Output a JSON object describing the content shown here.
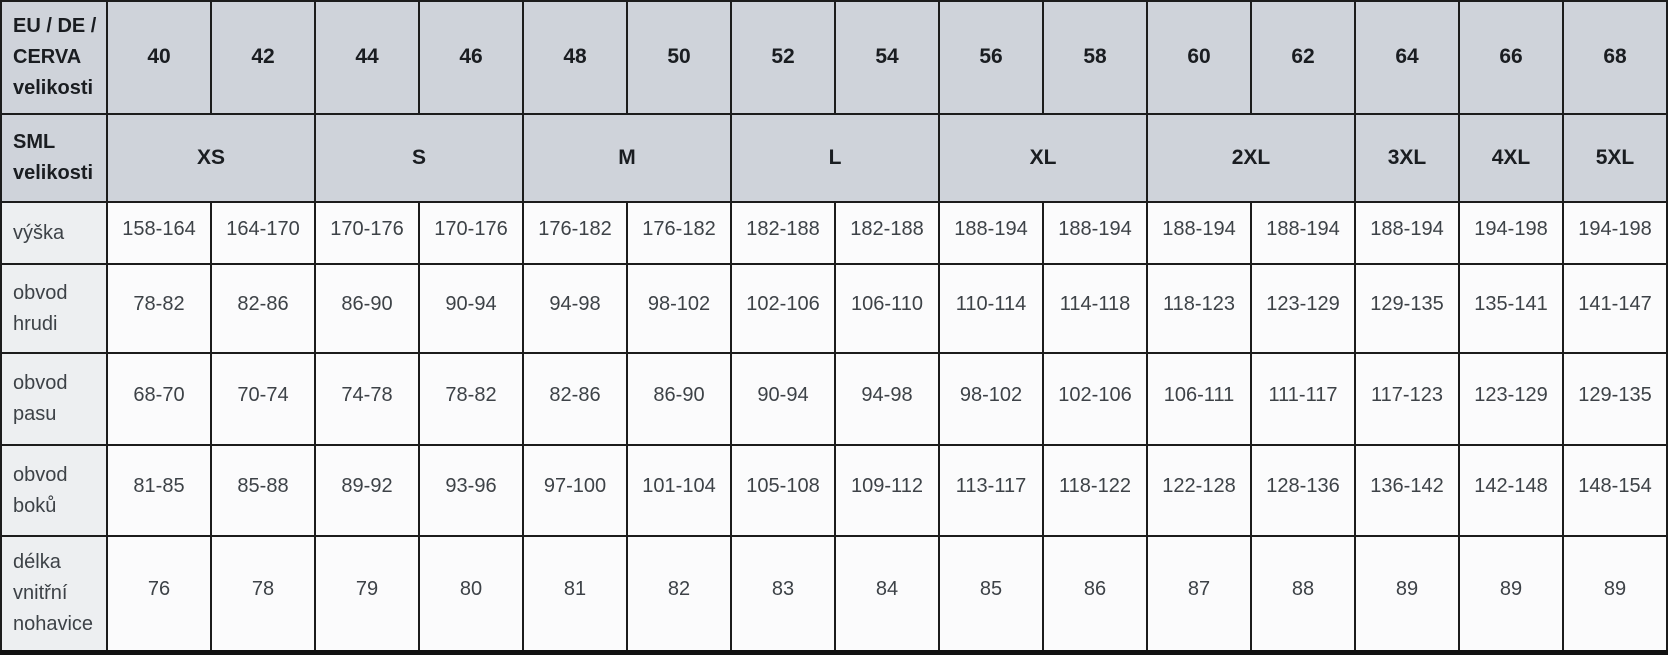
{
  "table": {
    "header_rows": [
      {
        "label": "EU / DE / CERVA velikosti",
        "cells": [
          {
            "text": "40",
            "span": 1
          },
          {
            "text": "42",
            "span": 1
          },
          {
            "text": "44",
            "span": 1
          },
          {
            "text": "46",
            "span": 1
          },
          {
            "text": "48",
            "span": 1
          },
          {
            "text": "50",
            "span": 1
          },
          {
            "text": "52",
            "span": 1
          },
          {
            "text": "54",
            "span": 1
          },
          {
            "text": "56",
            "span": 1
          },
          {
            "text": "58",
            "span": 1
          },
          {
            "text": "60",
            "span": 1
          },
          {
            "text": "62",
            "span": 1
          },
          {
            "text": "64",
            "span": 1
          },
          {
            "text": "66",
            "span": 1
          },
          {
            "text": "68",
            "span": 1
          }
        ]
      },
      {
        "label": "SML velikosti",
        "cells": [
          {
            "text": "XS",
            "span": 2
          },
          {
            "text": "S",
            "span": 2
          },
          {
            "text": "M",
            "span": 2
          },
          {
            "text": "L",
            "span": 2
          },
          {
            "text": "XL",
            "span": 2
          },
          {
            "text": "2XL",
            "span": 2
          },
          {
            "text": "3XL",
            "span": 1
          },
          {
            "text": "4XL",
            "span": 1
          },
          {
            "text": "5XL",
            "span": 1
          }
        ]
      }
    ],
    "rows": [
      {
        "label": "výška",
        "values": [
          "158-164",
          "164-170",
          "170-176",
          "170-176",
          "176-182",
          "176-182",
          "182-188",
          "182-188",
          "188-194",
          "188-194",
          "188-194",
          "188-194",
          "188-194",
          "194-198",
          "194-198"
        ]
      },
      {
        "label": "obvod hrudi",
        "values": [
          "78-82",
          "82-86",
          "86-90",
          "90-94",
          "94-98",
          "98-102",
          "102-106",
          "106-110",
          "110-114",
          "114-118",
          "118-123",
          "123-129",
          "129-135",
          "135-141",
          "141-147"
        ]
      },
      {
        "label": "obvod pasu",
        "values": [
          "68-70",
          "70-74",
          "74-78",
          "78-82",
          "82-86",
          "86-90",
          "90-94",
          "94-98",
          "98-102",
          "102-106",
          "106-111",
          "111-117",
          "117-123",
          "123-129",
          "129-135"
        ]
      },
      {
        "label": "obvod boků",
        "values": [
          "81-85",
          "85-88",
          "89-92",
          "93-96",
          "97-100",
          "101-104",
          "105-108",
          "109-112",
          "113-117",
          "118-122",
          "122-128",
          "128-136",
          "136-142",
          "142-148",
          "148-154"
        ]
      },
      {
        "label": "délka vnitřní nohavice",
        "values": [
          "76",
          "78",
          "79",
          "80",
          "81",
          "82",
          "83",
          "84",
          "85",
          "86",
          "87",
          "88",
          "89",
          "89",
          "89"
        ]
      }
    ]
  },
  "colors": {
    "header_bg": "#cfd3da",
    "label_bg": "#edeff1",
    "cell_bg": "#fbfbfc",
    "border": "#1c1c1c",
    "header_text": "#1a1d21",
    "body_text": "#3d4247"
  }
}
